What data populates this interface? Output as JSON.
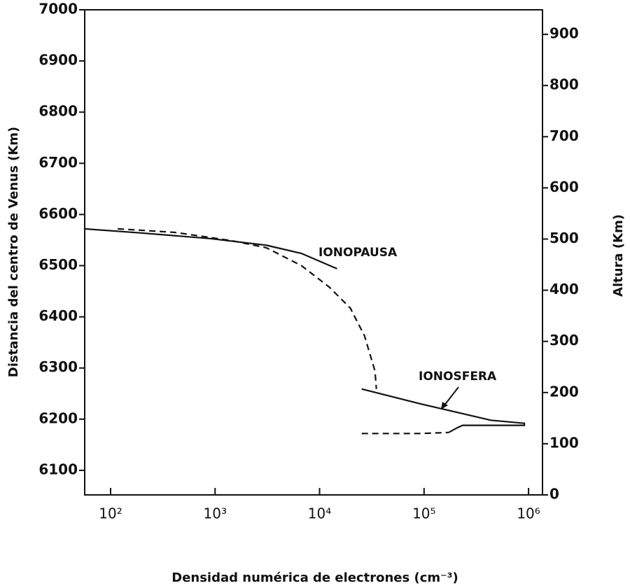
{
  "chart_data": {
    "type": "line",
    "xlabel": "Densidad numérica de electrones (cm⁻³)",
    "ylabel": "Distancia del centro de Venus (Km)",
    "y2label": "Altura (Km)",
    "xscale": "log",
    "xlim": [
      56.5,
      1360000
    ],
    "xticks": [
      {
        "value": 100,
        "label": "10²"
      },
      {
        "value": 1000,
        "label": "10³"
      },
      {
        "value": 10000,
        "label": "10⁴"
      },
      {
        "value": 100000,
        "label": "10⁵"
      },
      {
        "value": 1000000,
        "label": "10⁶"
      }
    ],
    "ylim": [
      6052,
      7000
    ],
    "yticks": [
      6100,
      6200,
      6300,
      6400,
      6500,
      6600,
      6700,
      6800,
      6900,
      7000
    ],
    "y2lim": [
      0,
      948
    ],
    "y2ticks": [
      0,
      100,
      200,
      300,
      400,
      500,
      600,
      700,
      800,
      900
    ],
    "grid": false,
    "series": [
      {
        "color": "#111111",
        "linestyle": "solid",
        "x": [
          56.5,
          191,
          897,
          3090,
          6700,
          14700
        ],
        "values": [
          6572,
          6564,
          6553,
          6540,
          6524,
          6494
        ]
      },
      {
        "color": "#111111",
        "linestyle": "dashed",
        "x": [
          117,
          414,
          1430,
          3090,
          6700,
          12400,
          19700,
          26900,
          33900,
          35000
        ],
        "values": [
          6572,
          6565,
          6549,
          6535,
          6500,
          6458,
          6417,
          6363,
          6294,
          6259
        ]
      },
      {
        "color": "#111111",
        "linestyle": "solid",
        "x": [
          25300,
          92500,
          434000,
          912000,
          912000,
          234000,
          207000,
          172000
        ],
        "values": [
          6259,
          6230,
          6198,
          6192,
          6188,
          6188,
          6183,
          6174
        ]
      },
      {
        "color": "#111111",
        "linestyle": "dashed",
        "x": [
          25300,
          92500,
          172000
        ],
        "values": [
          6172,
          6172,
          6174
        ]
      }
    ],
    "annotations": [
      {
        "text": "IONOPAUSA"
      },
      {
        "text": "IONOSFERA"
      }
    ]
  }
}
